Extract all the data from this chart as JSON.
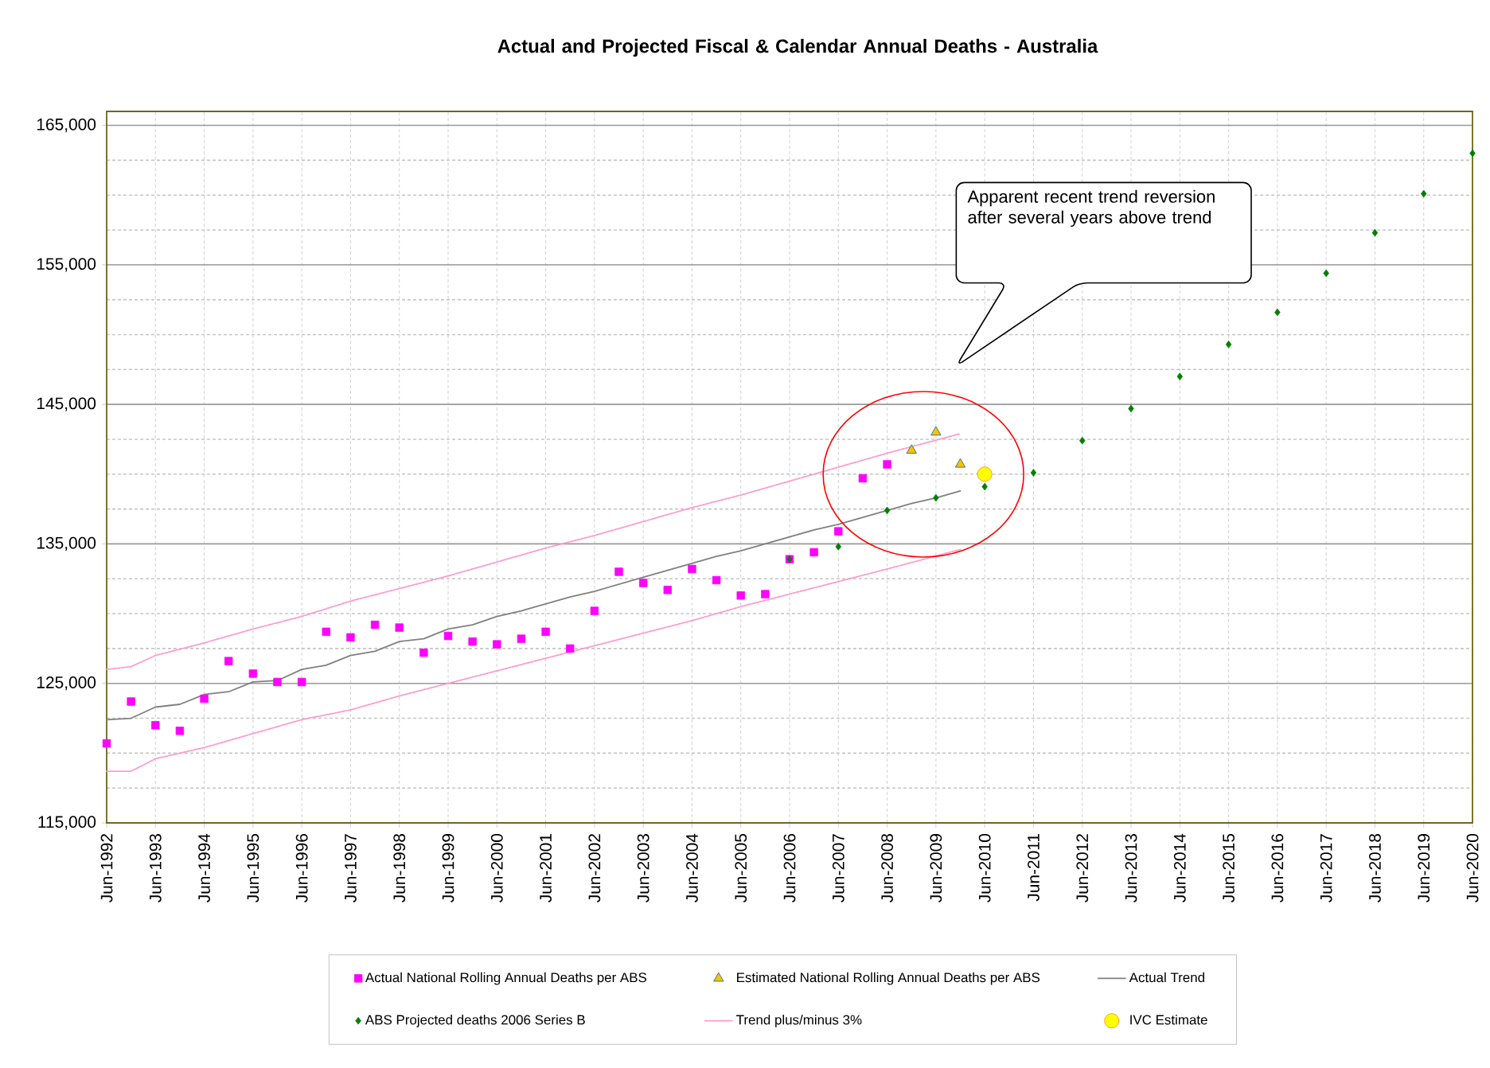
{
  "chart_data": {
    "type": "scatter",
    "title": "Actual and Projected Fiscal & Calendar Annual Deaths - Australia",
    "annotations": [
      "Apparent recent trend reversion after several years above trend"
    ],
    "xlim": [
      "1992-06",
      "2020-06"
    ],
    "xticks": [
      {
        "value": "1992-06",
        "label": "Jun-1992"
      },
      {
        "value": "1993-06",
        "label": "Jun-1993"
      },
      {
        "value": "1994-06",
        "label": "Jun-1994"
      },
      {
        "value": "1995-06",
        "label": "Jun-1995"
      },
      {
        "value": "1996-06",
        "label": "Jun-1996"
      },
      {
        "value": "1997-06",
        "label": "Jun-1997"
      },
      {
        "value": "1998-06",
        "label": "Jun-1998"
      },
      {
        "value": "1999-06",
        "label": "Jun-1999"
      },
      {
        "value": "2000-06",
        "label": "Jun-2000"
      },
      {
        "value": "2001-06",
        "label": "Jun-2001"
      },
      {
        "value": "2002-06",
        "label": "Jun-2002"
      },
      {
        "value": "2003-06",
        "label": "Jun-2003"
      },
      {
        "value": "2004-06",
        "label": "Jun-2004"
      },
      {
        "value": "2005-06",
        "label": "Jun-2005"
      },
      {
        "value": "2006-06",
        "label": "Jun-2006"
      },
      {
        "value": "2007-06",
        "label": "Jun-2007"
      },
      {
        "value": "2008-06",
        "label": "Jun-2008"
      },
      {
        "value": "2009-06",
        "label": "Jun-2009"
      },
      {
        "value": "2010-06",
        "label": "Jun-2010"
      },
      {
        "value": "2011-06",
        "label": "Jun-2011"
      },
      {
        "value": "2012-06",
        "label": "Jun-2012"
      },
      {
        "value": "2013-06",
        "label": "Jun-2013"
      },
      {
        "value": "2014-06",
        "label": "Jun-2014"
      },
      {
        "value": "2015-06",
        "label": "Jun-2015"
      },
      {
        "value": "2016-06",
        "label": "Jun-2016"
      },
      {
        "value": "2017-06",
        "label": "Jun-2017"
      },
      {
        "value": "2018-06",
        "label": "Jun-2018"
      },
      {
        "value": "2019-06",
        "label": "Jun-2019"
      },
      {
        "value": "2020-06",
        "label": "Jun-2020"
      }
    ],
    "ylim": [
      115000,
      166000
    ],
    "yticks": [
      {
        "value": 115000,
        "label": "115,000"
      },
      {
        "value": 117500,
        "label": null
      },
      {
        "value": 120000,
        "label": null
      },
      {
        "value": 122500,
        "label": null
      },
      {
        "value": 125000,
        "label": "125,000"
      },
      {
        "value": 127500,
        "label": null
      },
      {
        "value": 130000,
        "label": null
      },
      {
        "value": 132500,
        "label": null
      },
      {
        "value": 135000,
        "label": "135,000"
      },
      {
        "value": 137500,
        "label": null
      },
      {
        "value": 140000,
        "label": null
      },
      {
        "value": 142500,
        "label": null
      },
      {
        "value": 145000,
        "label": "145,000"
      },
      {
        "value": 147500,
        "label": null
      },
      {
        "value": 150000,
        "label": null
      },
      {
        "value": 152500,
        "label": null
      },
      {
        "value": 155000,
        "label": "155,000"
      },
      {
        "value": 157500,
        "label": null
      },
      {
        "value": 160000,
        "label": null
      },
      {
        "value": 162500,
        "label": null
      },
      {
        "value": 165000,
        "label": "165,000"
      }
    ],
    "grid": true,
    "legend": "bottom",
    "series": [
      {
        "name": "Actual National Rolling Annual Deaths per ABS",
        "marker": "square",
        "color": "#ff00ff",
        "x": [
          "1992-06",
          "1992-12",
          "1993-06",
          "1993-12",
          "1994-06",
          "1994-12",
          "1995-06",
          "1995-12",
          "1996-06",
          "1996-12",
          "1997-06",
          "1997-12",
          "1998-06",
          "1998-12",
          "1999-06",
          "1999-12",
          "2000-06",
          "2000-12",
          "2001-06",
          "2001-12",
          "2002-06",
          "2002-12",
          "2003-06",
          "2003-12",
          "2004-06",
          "2004-12",
          "2005-06",
          "2005-12",
          "2006-06",
          "2006-12",
          "2007-06",
          "2007-12",
          "2008-06"
        ],
        "values": [
          120700,
          123700,
          122000,
          121600,
          123900,
          126600,
          125700,
          125100,
          125100,
          128700,
          128300,
          129200,
          129000,
          127200,
          128400,
          128000,
          127800,
          128200,
          128700,
          127500,
          130200,
          133000,
          132200,
          131700,
          133200,
          132400,
          131300,
          131400,
          133900,
          134400,
          135900,
          139700,
          140700
        ]
      },
      {
        "name": "Estimated National Rolling Annual Deaths per ABS",
        "marker": "triangle",
        "color": "#ffc000",
        "x": [
          "2008-12",
          "2009-06",
          "2009-12"
        ],
        "values": [
          141700,
          143000,
          140700
        ]
      },
      {
        "name": "Actual Trend",
        "type": "line",
        "marker": "none",
        "line_style": "solid",
        "color": "#808080",
        "x": [
          "1992-06",
          "1992-12",
          "1993-06",
          "1993-12",
          "1994-06",
          "1994-12",
          "1995-06",
          "1995-12",
          "1996-06",
          "1996-12",
          "1997-06",
          "1997-12",
          "1998-06",
          "1998-12",
          "1999-06",
          "1999-12",
          "2000-06",
          "2000-12",
          "2001-06",
          "2001-12",
          "2002-06",
          "2002-12",
          "2003-06",
          "2003-12",
          "2004-06",
          "2004-12",
          "2005-06",
          "2005-12",
          "2006-06",
          "2006-12",
          "2007-06",
          "2007-12",
          "2008-06",
          "2008-12",
          "2009-06",
          "2009-12"
        ],
        "values": [
          122400,
          122500,
          123300,
          123500,
          124200,
          124400,
          125100,
          125200,
          126000,
          126300,
          127000,
          127300,
          128000,
          128200,
          128900,
          129200,
          129800,
          130200,
          130700,
          131200,
          131600,
          132100,
          132600,
          133100,
          133600,
          134100,
          134500,
          135000,
          135500,
          136000,
          136400,
          136900,
          137400,
          137900,
          138300,
          138800
        ]
      },
      {
        "name": "ABS Projected deaths 2006 Series B",
        "marker": "diamond",
        "color": "#008000",
        "x": [
          "2006-06",
          "2007-06",
          "2008-06",
          "2009-06",
          "2010-06",
          "2011-06",
          "2012-06",
          "2013-06",
          "2014-06",
          "2015-06",
          "2016-06",
          "2017-06",
          "2018-06",
          "2019-06",
          "2020-06"
        ],
        "values": [
          133900,
          134800,
          137400,
          138300,
          139100,
          140100,
          142400,
          144700,
          147000,
          149300,
          151600,
          154400,
          157300,
          160100,
          163000
        ]
      },
      {
        "name": "Trend plus/minus 3%",
        "type": "line",
        "marker": "none",
        "line_style": "dashed",
        "color": "#ff99cc",
        "x": [
          "1992-06",
          "1992-12",
          "1993-06",
          "1994-06",
          "1995-06",
          "1996-06",
          "1997-06",
          "1998-06",
          "1999-06",
          "2000-06",
          "2001-06",
          "2002-06",
          "2003-06",
          "2004-06",
          "2005-06",
          "2006-06",
          "2007-06",
          "2008-06",
          "2009-12"
        ],
        "values": [
          126000,
          126200,
          127000,
          127900,
          128900,
          129800,
          130900,
          131800,
          132700,
          133700,
          134700,
          135600,
          136600,
          137600,
          138500,
          139500,
          140500,
          141500,
          142900
        ]
      },
      {
        "name": "IVC Estimate",
        "marker": "circle",
        "color": "#ffff00",
        "x": [
          "2010-06"
        ],
        "values": [
          140000
        ]
      },
      {
        "type": "line",
        "marker": "none",
        "line_style": "dashed",
        "color": "#ff99cc",
        "x": [
          "1992-06",
          "1992-12",
          "1993-06",
          "1994-06",
          "1995-06",
          "1996-06",
          "1997-06",
          "1998-06",
          "1999-06",
          "2000-06",
          "2001-06",
          "2002-06",
          "2003-06",
          "2004-06",
          "2005-06",
          "2006-06",
          "2007-06",
          "2008-06",
          "2009-12"
        ],
        "values": [
          118700,
          118700,
          119600,
          120400,
          121400,
          122400,
          123100,
          124100,
          125000,
          125900,
          126800,
          127700,
          128600,
          129500,
          130500,
          131400,
          132300,
          133200,
          134600
        ]
      }
    ]
  }
}
